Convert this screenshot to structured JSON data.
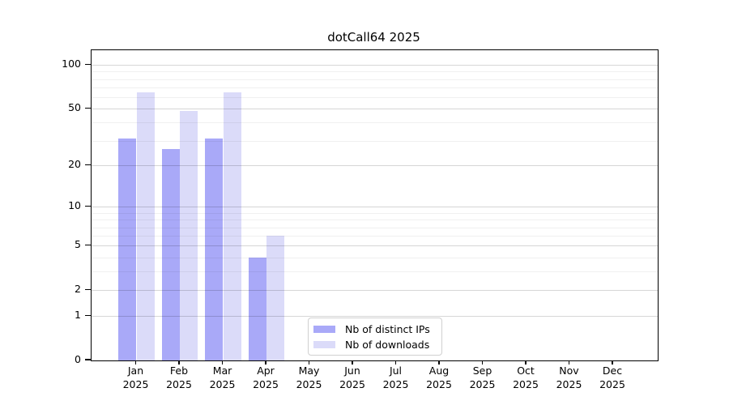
{
  "chart_data": {
    "type": "bar",
    "title": "dotCall64 2025",
    "categories": [
      {
        "month": "Jan",
        "year": "2025"
      },
      {
        "month": "Feb",
        "year": "2025"
      },
      {
        "month": "Mar",
        "year": "2025"
      },
      {
        "month": "Apr",
        "year": "2025"
      },
      {
        "month": "May",
        "year": "2025"
      },
      {
        "month": "Jun",
        "year": "2025"
      },
      {
        "month": "Jul",
        "year": "2025"
      },
      {
        "month": "Aug",
        "year": "2025"
      },
      {
        "month": "Sep",
        "year": "2025"
      },
      {
        "month": "Oct",
        "year": "2025"
      },
      {
        "month": "Nov",
        "year": "2025"
      },
      {
        "month": "Dec",
        "year": "2025"
      }
    ],
    "series": [
      {
        "name": "Nb of distinct IPs",
        "color": "#a9a9f8",
        "values": [
          31,
          26,
          31,
          4,
          null,
          null,
          null,
          null,
          null,
          null,
          null,
          null
        ]
      },
      {
        "name": "Nb of downloads",
        "color": "#dbdbf9",
        "values": [
          65,
          48,
          65,
          6,
          null,
          null,
          null,
          null,
          null,
          null,
          null,
          null
        ]
      }
    ],
    "yaxis": {
      "scale": "log10(value+1)",
      "ticks": [
        100,
        50,
        20,
        10,
        5,
        2,
        1,
        0
      ],
      "minor_gridlines": [
        3,
        4,
        6,
        7,
        8,
        9,
        30,
        40,
        60,
        70,
        80,
        90
      ],
      "max_value": 126
    },
    "grid": true,
    "legend_position": "bottom-center-inside"
  }
}
